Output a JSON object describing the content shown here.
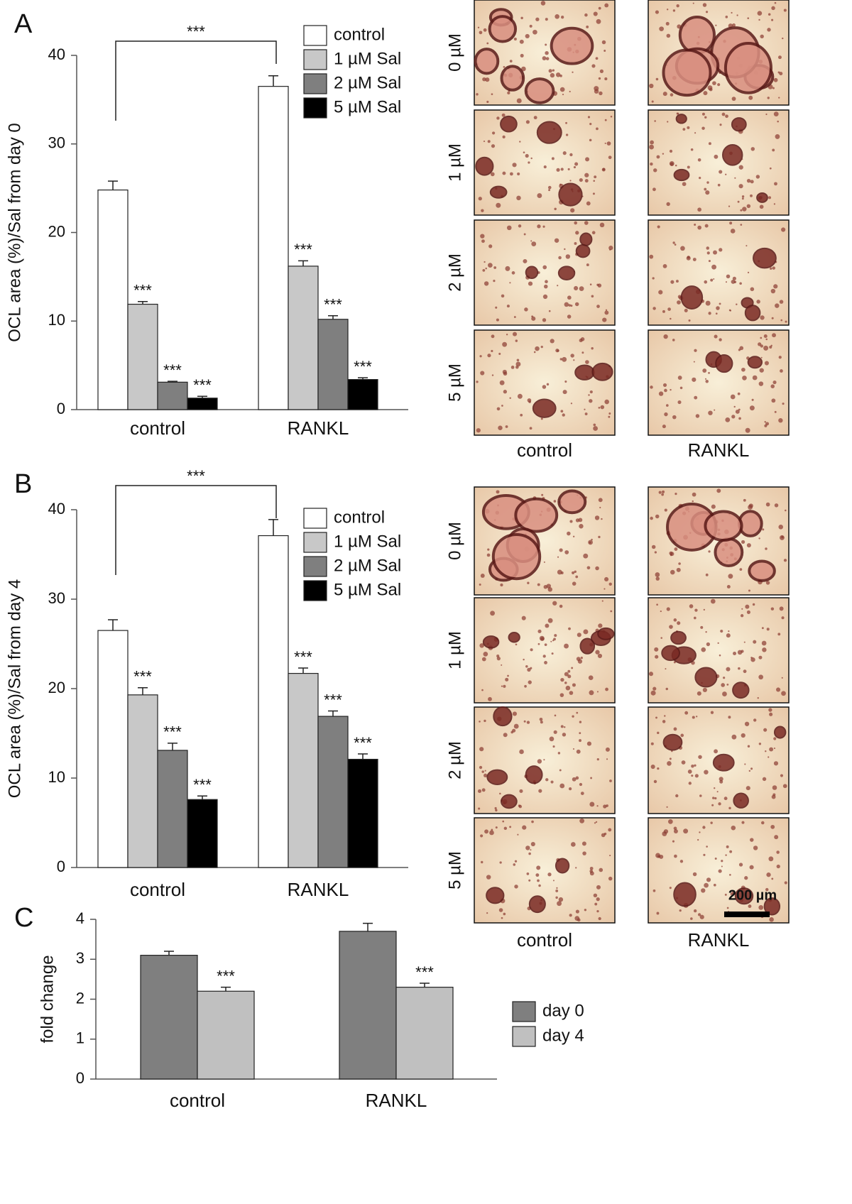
{
  "chart_data": [
    {
      "type": "bar",
      "panel": "A",
      "ylabel": "OCL area (%)/Sal from day 0",
      "categories": [
        "control",
        "RANKL"
      ],
      "series": [
        {
          "name": "control",
          "color": "#ffffff",
          "values": [
            24.8,
            36.5
          ],
          "errors": [
            1.0,
            1.2
          ],
          "annotations": [
            null,
            null
          ]
        },
        {
          "name": "1 µM Sal",
          "color": "#c8c8c8",
          "values": [
            11.9,
            16.2
          ],
          "errors": [
            0.3,
            0.6
          ],
          "annotations": [
            "***",
            "***"
          ]
        },
        {
          "name": "2 µM Sal",
          "color": "#7f7f7f",
          "values": [
            3.1,
            10.2
          ],
          "errors": [
            0.1,
            0.4
          ],
          "annotations": [
            "***",
            "***"
          ]
        },
        {
          "name": "5 µM Sal",
          "color": "#000000",
          "values": [
            1.3,
            3.4
          ],
          "errors": [
            0.2,
            0.2
          ],
          "annotations": [
            "***",
            "***"
          ]
        }
      ],
      "bracket_label": "***",
      "ylim": [
        0,
        40
      ],
      "yticks": [
        0,
        10,
        20,
        30,
        40
      ]
    },
    {
      "type": "bar",
      "panel": "B",
      "ylabel": "OCL area (%)/Sal from day 4",
      "categories": [
        "control",
        "RANKL"
      ],
      "series": [
        {
          "name": "control",
          "color": "#ffffff",
          "values": [
            26.5,
            37.1
          ],
          "errors": [
            1.2,
            1.8
          ],
          "annotations": [
            null,
            null
          ]
        },
        {
          "name": "1 µM Sal",
          "color": "#c8c8c8",
          "values": [
            19.3,
            21.7
          ],
          "errors": [
            0.8,
            0.6
          ],
          "annotations": [
            "***",
            "***"
          ]
        },
        {
          "name": "2 µM Sal",
          "color": "#7f7f7f",
          "values": [
            13.1,
            16.9
          ],
          "errors": [
            0.8,
            0.6
          ],
          "annotations": [
            "***",
            "***"
          ]
        },
        {
          "name": "5 µM Sal",
          "color": "#000000",
          "values": [
            7.6,
            12.1
          ],
          "errors": [
            0.4,
            0.6
          ],
          "annotations": [
            "***",
            "***"
          ]
        }
      ],
      "bracket_label": "***",
      "ylim": [
        0,
        40
      ],
      "yticks": [
        0,
        10,
        20,
        30,
        40
      ]
    },
    {
      "type": "bar",
      "panel": "C",
      "ylabel": "fold change",
      "categories": [
        "control",
        "RANKL"
      ],
      "series": [
        {
          "name": "day 0",
          "color": "#7f7f7f",
          "values": [
            3.1,
            3.7
          ],
          "errors": [
            0.1,
            0.2
          ],
          "annotations": [
            null,
            null
          ]
        },
        {
          "name": "day 4",
          "color": "#c0c0c0",
          "values": [
            2.2,
            2.3
          ],
          "errors": [
            0.1,
            0.1
          ],
          "annotations": [
            "***",
            "***"
          ]
        }
      ],
      "ylim": [
        0,
        4
      ],
      "yticks": [
        0,
        1,
        2,
        3,
        4
      ]
    }
  ],
  "micrographs": [
    {
      "row_labels": [
        "0 µM",
        "1 µM",
        "2 µM",
        "5 µM"
      ],
      "column_labels": [
        "control",
        "RANKL"
      ]
    },
    {
      "row_labels": [
        "0 µM",
        "1 µM",
        "2 µM",
        "5 µM"
      ],
      "column_labels": [
        "control",
        "RANKL"
      ],
      "scale_bar": "200 µm"
    }
  ]
}
